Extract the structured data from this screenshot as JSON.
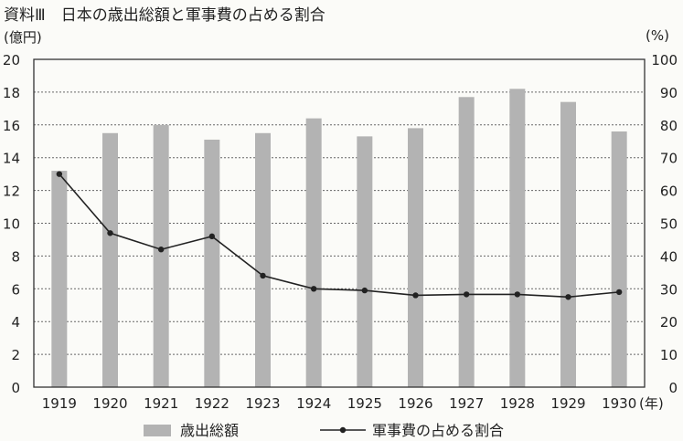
{
  "title": "資料Ⅲ　日本の歳出総額と軍事費の占める割合",
  "left_unit": "(億円)",
  "right_unit": "(%)",
  "chart_data": {
    "type": "bar",
    "categories": [
      "1919",
      "1920",
      "1921",
      "1922",
      "1923",
      "1924",
      "1925",
      "1926",
      "1927",
      "1928",
      "1929",
      "1930"
    ],
    "x_suffix": "(年)",
    "series": [
      {
        "name": "歳出総額",
        "type": "bar",
        "axis": "left",
        "values": [
          13.2,
          15.5,
          16.0,
          15.1,
          15.5,
          16.4,
          15.3,
          15.8,
          17.7,
          18.2,
          17.4,
          15.6
        ]
      },
      {
        "name": "軍事費の占める割合",
        "type": "line",
        "axis": "right",
        "values": [
          65,
          47,
          42,
          46,
          34,
          30,
          29.5,
          28,
          28.3,
          28.3,
          27.5,
          29
        ]
      }
    ],
    "ylim_left": [
      0,
      20
    ],
    "yticks_left": [
      0,
      2,
      4,
      6,
      8,
      10,
      12,
      14,
      16,
      18,
      20
    ],
    "ylim_right": [
      0,
      100
    ],
    "yticks_right": [
      0,
      10,
      20,
      30,
      40,
      50,
      60,
      70,
      80,
      90,
      100
    ],
    "grid": true,
    "colors": {
      "bar": "#b3b3b3",
      "line": "#222222",
      "grid": "#666666"
    }
  }
}
